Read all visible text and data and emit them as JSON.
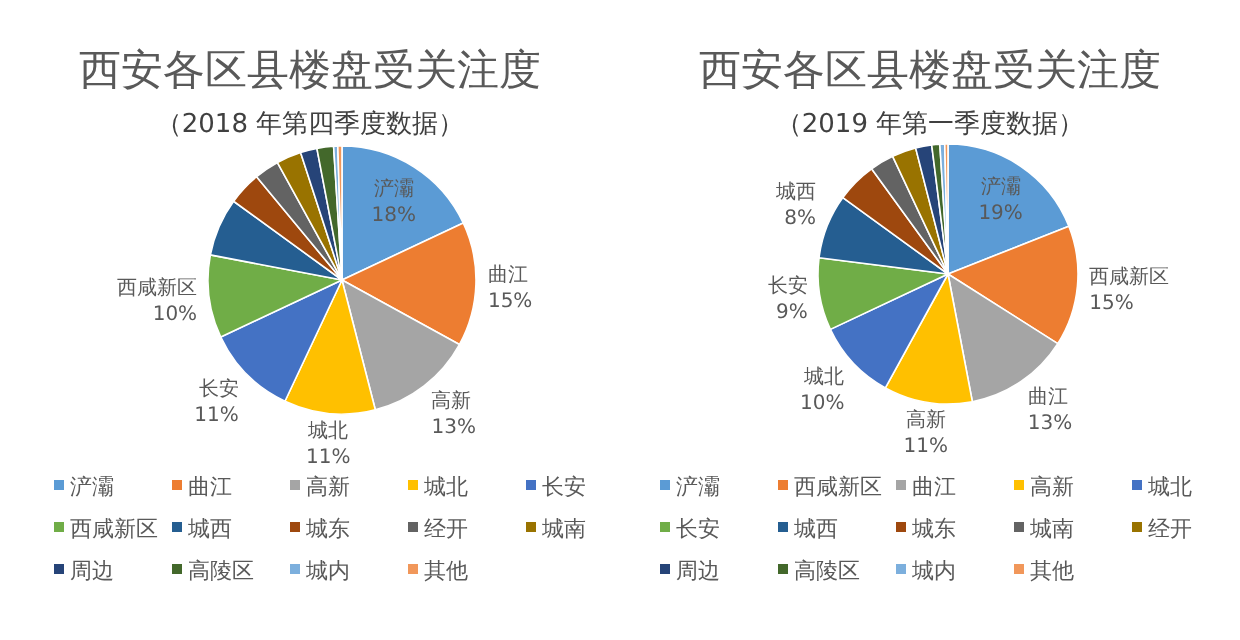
{
  "chart_data": [
    {
      "type": "pie",
      "title": "西安各区县楼盘受关注度",
      "subtitle": "（2018 年第四季度数据）",
      "categories": [
        "浐灞",
        "曲江",
        "高新",
        "城北",
        "长安",
        "西咸新区",
        "城西",
        "城东",
        "经开",
        "城南",
        "周边",
        "高陵区",
        "城内",
        "其他"
      ],
      "values": [
        18,
        15,
        13,
        11,
        11,
        10,
        7,
        4,
        3,
        3,
        2,
        2,
        0.5,
        0.5
      ],
      "value_labels": [
        "18%",
        "15%",
        "13%",
        "11%",
        "11%",
        "10%",
        null,
        null,
        null,
        null,
        null,
        null,
        null,
        null
      ],
      "colors": [
        "#5b9bd5",
        "#ed7d31",
        "#a5a5a5",
        "#ffc000",
        "#4472c4",
        "#70ad47",
        "#255e91",
        "#9e480e",
        "#636363",
        "#997300",
        "#264478",
        "#43682b",
        "#7cafdd",
        "#f1975a"
      ],
      "legend": "bottom"
    },
    {
      "type": "pie",
      "title": "西安各区县楼盘受关注度",
      "subtitle": "（2019 年第一季度数据）",
      "categories": [
        "浐灞",
        "西咸新区",
        "曲江",
        "高新",
        "城北",
        "长安",
        "城西",
        "城东",
        "城南",
        "经开",
        "周边",
        "高陵区",
        "城内",
        "其他"
      ],
      "values": [
        19,
        15,
        13,
        11,
        10,
        9,
        8,
        5,
        3,
        3,
        2,
        1,
        0.6,
        0.4
      ],
      "value_labels": [
        "19%",
        "15%",
        "13%",
        "11%",
        "10%",
        "9%",
        "8%",
        null,
        null,
        null,
        null,
        null,
        null,
        null
      ],
      "colors": [
        "#5b9bd5",
        "#ed7d31",
        "#a5a5a5",
        "#ffc000",
        "#4472c4",
        "#70ad47",
        "#255e91",
        "#9e480e",
        "#636363",
        "#997300",
        "#264478",
        "#43682b",
        "#7cafdd",
        "#f1975a"
      ],
      "legend": "bottom"
    }
  ]
}
